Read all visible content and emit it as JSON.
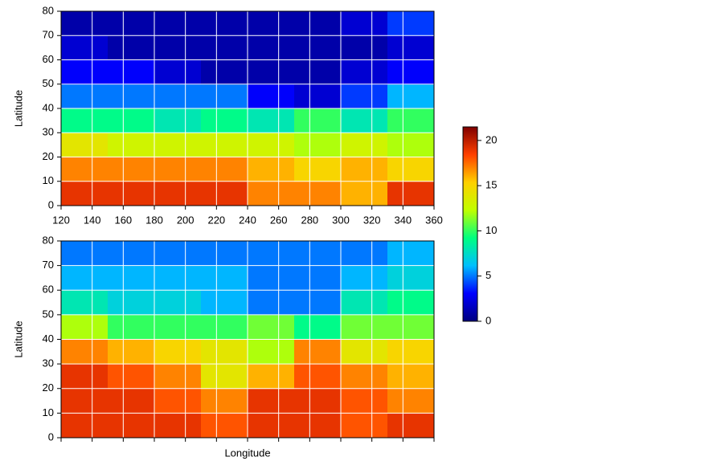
{
  "chart_data": [
    {
      "type": "heatmap",
      "y_label": "Latitude",
      "xlim": [
        120,
        360
      ],
      "xticks": [
        120,
        140,
        160,
        180,
        200,
        220,
        240,
        260,
        280,
        300,
        320,
        340,
        360
      ],
      "ylim": [
        0,
        80
      ],
      "yticks": [
        0,
        10,
        20,
        30,
        40,
        50,
        60,
        70,
        80
      ],
      "grid": true,
      "x": [
        135,
        165,
        195,
        225,
        255,
        285,
        315,
        345
      ],
      "y": [
        5,
        15,
        25,
        35,
        45,
        55,
        65,
        75
      ],
      "values": [
        [
          19,
          19,
          19,
          19,
          17,
          17,
          16,
          19
        ],
        [
          17,
          17,
          17,
          17,
          16,
          15,
          16,
          15
        ],
        [
          14,
          13,
          13,
          13,
          13,
          12,
          13,
          12
        ],
        [
          9,
          9,
          8,
          9,
          8,
          10,
          8,
          10
        ],
        [
          5,
          5,
          5,
          5,
          3,
          2,
          4,
          6
        ],
        [
          3,
          3,
          2,
          1,
          1,
          1,
          2,
          3
        ],
        [
          2,
          1,
          1,
          1,
          1,
          1,
          1,
          2
        ],
        [
          1,
          1,
          1,
          1,
          1,
          1,
          2,
          4
        ]
      ]
    },
    {
      "type": "heatmap",
      "y_label": "Latitude",
      "x_label": "Longitude",
      "xlim": [
        120,
        360
      ],
      "xticks": [
        120,
        140,
        160,
        180,
        200,
        220,
        240,
        260,
        280,
        300,
        320,
        340,
        360
      ],
      "ylim": [
        0,
        80
      ],
      "yticks": [
        0,
        10,
        20,
        30,
        40,
        50,
        60,
        70,
        80
      ],
      "grid": true,
      "x": [
        135,
        165,
        195,
        225,
        255,
        285,
        315,
        345
      ],
      "y": [
        5,
        15,
        25,
        35,
        45,
        55,
        65,
        75
      ],
      "values": [
        [
          19,
          19,
          19,
          18,
          19,
          19,
          18,
          19
        ],
        [
          19,
          19,
          18,
          17,
          19,
          19,
          18,
          17
        ],
        [
          19,
          18,
          17,
          14,
          16,
          18,
          17,
          16
        ],
        [
          17,
          16,
          15,
          14,
          12,
          17,
          14,
          15
        ],
        [
          12,
          10,
          10,
          10,
          11,
          9,
          11,
          11
        ],
        [
          8,
          7,
          7,
          6,
          5,
          5,
          8,
          9
        ],
        [
          6,
          6,
          6,
          6,
          5,
          5,
          6,
          7
        ],
        [
          5,
          5,
          5,
          5,
          5,
          5,
          5,
          6
        ]
      ]
    }
  ],
  "colorbar": {
    "lim": [
      0,
      21.5
    ],
    "ticks": [
      0,
      5,
      10,
      15,
      20
    ],
    "colors": [
      "#00007f",
      "#0000ff",
      "#00bfff",
      "#00ff80",
      "#c0ff00",
      "#ffd000",
      "#ff4000",
      "#7f0000"
    ]
  }
}
